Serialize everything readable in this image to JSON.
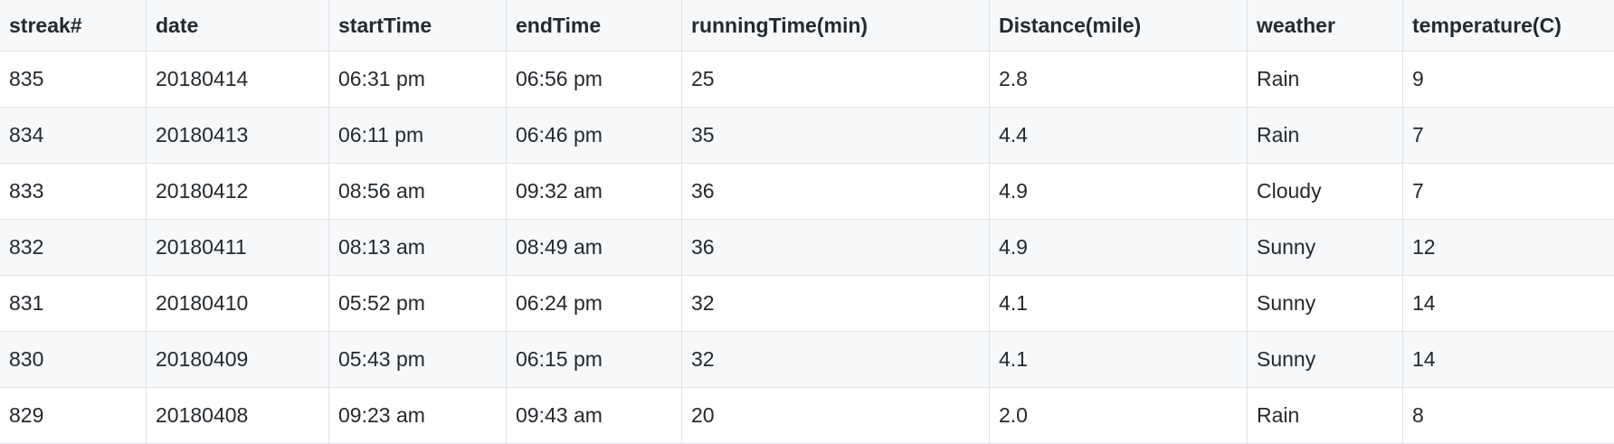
{
  "table": {
    "headers": [
      "streak#",
      "date",
      "startTime",
      "endTime",
      "runningTime(min)",
      "Distance(mile)",
      "weather",
      "temperature(C)"
    ],
    "rows": [
      [
        "835",
        "20180414",
        "06:31 pm",
        "06:56 pm",
        "25",
        "2.8",
        "Rain",
        "9"
      ],
      [
        "834",
        "20180413",
        "06:11 pm",
        "06:46 pm",
        "35",
        "4.4",
        "Rain",
        "7"
      ],
      [
        "833",
        "20180412",
        "08:56 am",
        "09:32 am",
        "36",
        "4.9",
        "Cloudy",
        "7"
      ],
      [
        "832",
        "20180411",
        "08:13 am",
        "08:49 am",
        "36",
        "4.9",
        "Sunny",
        "12"
      ],
      [
        "831",
        "20180410",
        "05:52 pm",
        "06:24 pm",
        "32",
        "4.1",
        "Sunny",
        "14"
      ],
      [
        "830",
        "20180409",
        "05:43 pm",
        "06:15 pm",
        "32",
        "4.1",
        "Sunny",
        "14"
      ],
      [
        "829",
        "20180408",
        "09:23 am",
        "09:43 am",
        "20",
        "2.0",
        "Rain",
        "8"
      ]
    ]
  }
}
